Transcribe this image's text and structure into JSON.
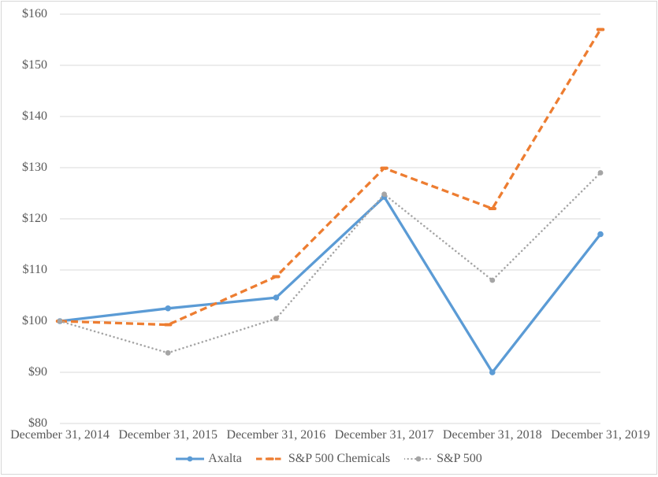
{
  "chart_data": {
    "type": "line",
    "title": "",
    "xlabel": "",
    "ylabel": "",
    "x": [
      "December 31, 2014",
      "December 31, 2015",
      "December 31, 2016",
      "December 31, 2017",
      "December 31, 2018",
      "December 31, 2019"
    ],
    "series": [
      {
        "name": "Axalta",
        "color": "#5B9BD5",
        "line_style": "solid",
        "marker": "circle",
        "values": [
          100,
          102.5,
          104.6,
          124.3,
          90,
          117
        ]
      },
      {
        "name": "S&P 500 Chemicals",
        "color": "#ED7D31",
        "line_style": "dashed",
        "marker": "dash",
        "values": [
          100,
          99.3,
          108.7,
          129.9,
          122,
          157
        ]
      },
      {
        "name": "S&P 500",
        "color": "#A5A5A5",
        "line_style": "dotted",
        "marker": "circle",
        "values": [
          100,
          93.8,
          100.5,
          124.8,
          108,
          129
        ]
      }
    ],
    "ylim": [
      80,
      160
    ],
    "ytick_step": 10,
    "ytick_labels": [
      "$80",
      "$90",
      "$100",
      "$110",
      "$120",
      "$130",
      "$140",
      "$150",
      "$160"
    ],
    "grid": "horizontal",
    "legend_position": "bottom"
  },
  "colors": {
    "background": "#FFFFFF",
    "border": "#D7D7D7",
    "gridline": "#D9D9D9",
    "text": "#595959"
  }
}
